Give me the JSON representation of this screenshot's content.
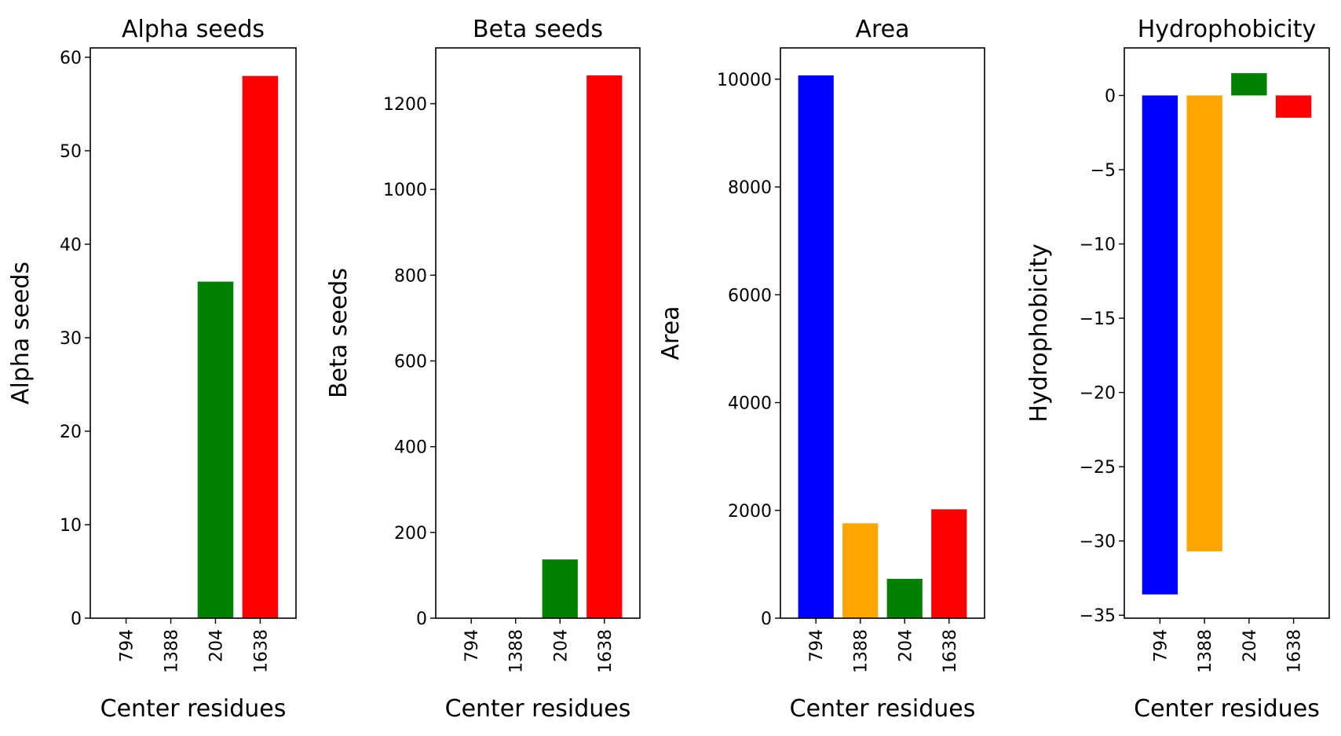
{
  "chart_data": [
    {
      "type": "bar",
      "title": "Alpha seeds",
      "xlabel": "Center residues",
      "ylabel": "Alpha seeds",
      "categories": [
        "794",
        "1388",
        "204",
        "1638"
      ],
      "values": [
        0,
        0,
        36,
        58
      ],
      "colors": [
        "#0000ff",
        "#ffa500",
        "#008000",
        "#ff0000"
      ],
      "ylim": [
        0,
        61
      ],
      "yticks": [
        0,
        10,
        20,
        30,
        40,
        50,
        60
      ],
      "ytick_labels": [
        "0",
        "10",
        "20",
        "30",
        "40",
        "50",
        "60"
      ],
      "grid": false
    },
    {
      "type": "bar",
      "title": "Beta seeds",
      "xlabel": "Center residues",
      "ylabel": "Beta seeds",
      "categories": [
        "794",
        "1388",
        "204",
        "1638"
      ],
      "values": [
        0,
        0,
        137,
        1266
      ],
      "colors": [
        "#0000ff",
        "#ffa500",
        "#008000",
        "#ff0000"
      ],
      "ylim": [
        0,
        1330
      ],
      "yticks": [
        0,
        200,
        400,
        600,
        800,
        1000,
        1200
      ],
      "ytick_labels": [
        "0",
        "200",
        "400",
        "600",
        "800",
        "1000",
        "1200"
      ],
      "grid": false
    },
    {
      "type": "bar",
      "title": "Area",
      "xlabel": "Center residues",
      "ylabel": "Area",
      "categories": [
        "794",
        "1388",
        "204",
        "1638"
      ],
      "values": [
        10070,
        1760,
        730,
        2020
      ],
      "colors": [
        "#0000ff",
        "#ffa500",
        "#008000",
        "#ff0000"
      ],
      "ylim": [
        0,
        10580
      ],
      "yticks": [
        0,
        2000,
        4000,
        6000,
        8000,
        10000
      ],
      "ytick_labels": [
        "0",
        "2000",
        "4000",
        "6000",
        "8000",
        "10000"
      ],
      "grid": false
    },
    {
      "type": "bar",
      "title": "Hydrophobicity",
      "xlabel": "Center residues",
      "ylabel": "Hydrophobicity",
      "categories": [
        "794",
        "1388",
        "204",
        "1638"
      ],
      "values": [
        -33.6,
        -30.7,
        1.5,
        -1.5
      ],
      "colors": [
        "#0000ff",
        "#ffa500",
        "#008000",
        "#ff0000"
      ],
      "ylim": [
        -35.2,
        3.2
      ],
      "yticks": [
        0,
        -5,
        -10,
        -15,
        -20,
        -25,
        -30,
        -35
      ],
      "ytick_labels": [
        "0",
        "−5",
        "−10",
        "−15",
        "−20",
        "−25",
        "−30",
        "−35"
      ],
      "grid": false
    }
  ]
}
